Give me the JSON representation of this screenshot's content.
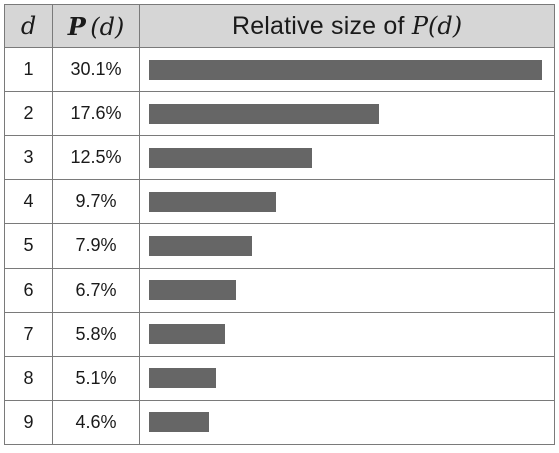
{
  "header": {
    "col_digit": "d",
    "col_prob_letter": "P",
    "col_prob_arg": "(d)",
    "col_rel_prefix": "Relative size of ",
    "col_rel_letter": "P",
    "col_rel_arg": "(d)"
  },
  "rows": [
    {
      "d": "1",
      "p_label": "30.1%"
    },
    {
      "d": "2",
      "p_label": "17.6%"
    },
    {
      "d": "3",
      "p_label": "12.5%"
    },
    {
      "d": "4",
      "p_label": "9.7%"
    },
    {
      "d": "5",
      "p_label": "7.9%"
    },
    {
      "d": "6",
      "p_label": "6.7%"
    },
    {
      "d": "7",
      "p_label": "5.8%"
    },
    {
      "d": "8",
      "p_label": "5.1%"
    },
    {
      "d": "9",
      "p_label": "4.6%"
    }
  ],
  "chart_data": {
    "type": "bar",
    "orientation": "horizontal",
    "categories": [
      "1",
      "2",
      "3",
      "4",
      "5",
      "6",
      "7",
      "8",
      "9"
    ],
    "values": [
      30.1,
      17.6,
      12.5,
      9.7,
      7.9,
      6.7,
      5.8,
      5.1,
      4.6
    ],
    "xlim": [
      0,
      30.1
    ],
    "bar_color": "#666666",
    "header_color": "#d6d6d6",
    "grid": false
  }
}
